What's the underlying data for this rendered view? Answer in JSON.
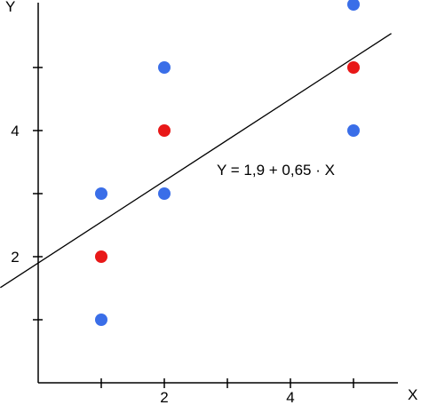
{
  "chart_data": {
    "type": "scatter",
    "xlabel": "X",
    "ylabel": "Y",
    "xlim": [
      0,
      6
    ],
    "ylim": [
      0,
      6
    ],
    "x_ticks": [
      1,
      2,
      3,
      4,
      5
    ],
    "x_tick_labels": [
      "",
      "2",
      "",
      "4",
      ""
    ],
    "y_ticks": [
      1,
      2,
      3,
      4,
      5
    ],
    "y_tick_labels": [
      "",
      "2",
      "",
      "4",
      ""
    ],
    "grid": false,
    "series": [
      {
        "color": "#3a6ee8",
        "points": [
          {
            "x": 1,
            "y": 1
          },
          {
            "x": 1,
            "y": 3
          },
          {
            "x": 2,
            "y": 3
          },
          {
            "x": 2,
            "y": 5
          },
          {
            "x": 5,
            "y": 4
          },
          {
            "x": 5,
            "y": 6
          }
        ]
      },
      {
        "color": "#e81818",
        "points": [
          {
            "x": 1,
            "y": 2
          },
          {
            "x": 2,
            "y": 4
          },
          {
            "x": 5,
            "y": 5
          }
        ]
      }
    ],
    "regression": {
      "intercept": 1.9,
      "slope": 0.65,
      "x_from": -0.6,
      "x_to": 5.6,
      "label": "Y = 1,9 + 0,65 · X"
    }
  }
}
